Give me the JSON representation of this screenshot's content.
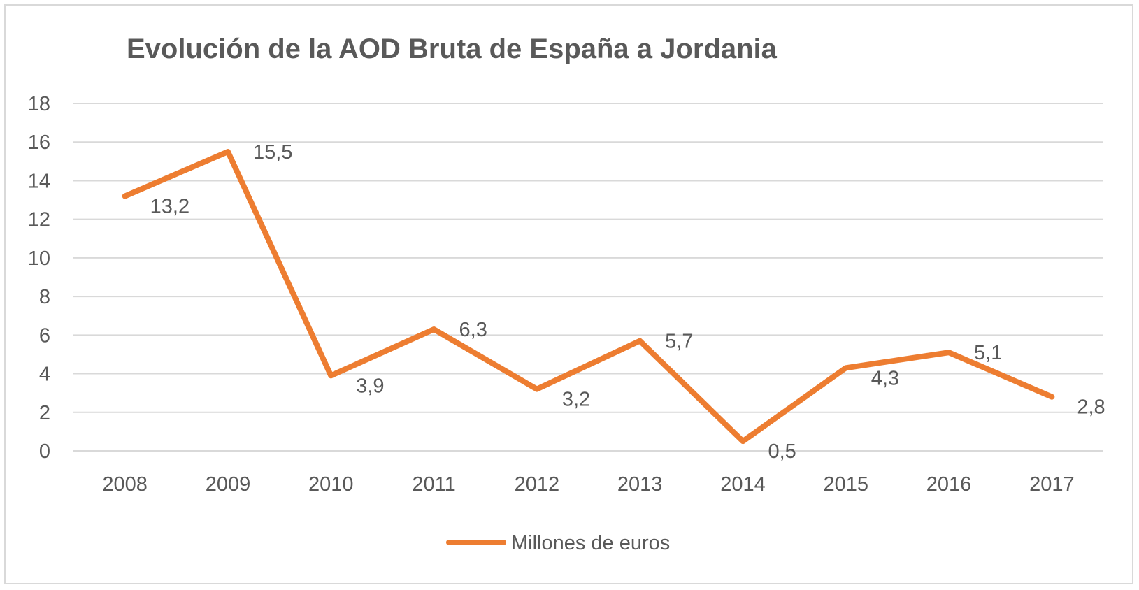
{
  "chart_data": {
    "type": "line",
    "title": "Evolución de la AOD Bruta de España a Jordania",
    "categories": [
      "2008",
      "2009",
      "2010",
      "2011",
      "2012",
      "2013",
      "2014",
      "2015",
      "2016",
      "2017"
    ],
    "series": [
      {
        "name": "Millones de euros",
        "values": [
          13.2,
          15.5,
          3.9,
          6.3,
          3.2,
          5.7,
          0.5,
          4.3,
          5.1,
          2.8
        ],
        "labels": [
          "13,2",
          "15,5",
          "3,9",
          "6,3",
          "3,2",
          "5,7",
          "0,5",
          "4,3",
          "5,1",
          "2,8"
        ],
        "color": "#ed7d31"
      }
    ],
    "yticks": [
      "0",
      "2",
      "4",
      "6",
      "8",
      "10",
      "12",
      "14",
      "16",
      "18"
    ],
    "ylim": [
      0,
      18
    ],
    "grid": true,
    "gridColor": "#d9d9d9",
    "legend": "bottom",
    "xlabel": "",
    "ylabel": ""
  }
}
